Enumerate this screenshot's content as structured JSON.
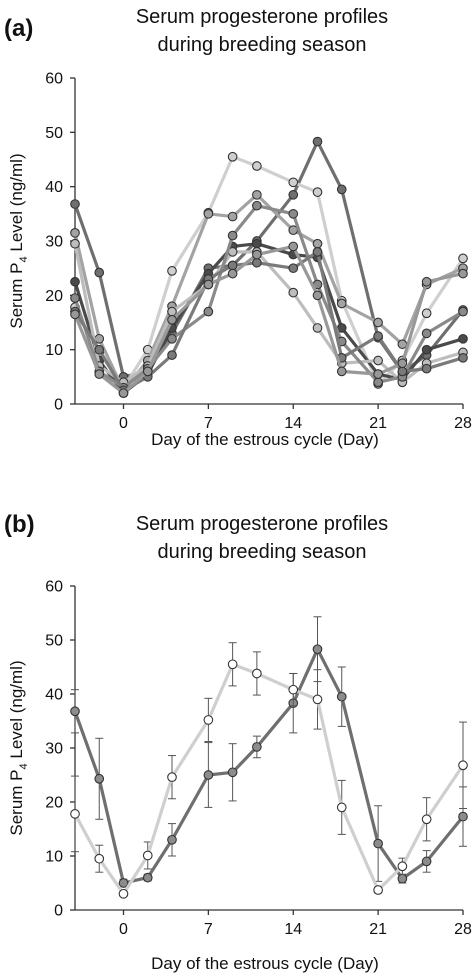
{
  "chart_data": [
    {
      "panel": "(a)",
      "type": "line",
      "title": "Serum progesterone profiles\nduring breeding season",
      "xlabel": "Day of the estrous cycle (Day)",
      "ylabel": "Serum P4 Level (ng/ml)",
      "ylabel_main": "Serum P",
      "ylabel_sub": "4",
      "ylabel_rest": " Level (ng/ml)",
      "xlim": [
        -4,
        28
      ],
      "ylim": [
        0,
        60
      ],
      "xticks": [
        "0",
        "7",
        "14",
        "21",
        "28"
      ],
      "yticks": [
        "0",
        "10",
        "20",
        "30",
        "40",
        "50",
        "60"
      ],
      "grid": false,
      "legend": "none",
      "x": [
        -4,
        -2,
        0,
        2,
        4,
        7,
        9,
        11,
        14,
        16,
        18,
        21,
        23,
        25,
        28
      ],
      "series": [
        {
          "color": "#6f6f6f",
          "values": [
            36.8,
            24.2,
            5.0,
            6.0,
            13.0,
            25.0,
            25.5,
            30.0,
            38.5,
            48.3,
            39.5,
            12.2,
            5.8,
            9.0,
            17.3
          ]
        },
        {
          "color": "#cfcfcf",
          "values": [
            17.8,
            9.5,
            3.0,
            10.0,
            24.5,
            35.2,
            45.5,
            43.8,
            40.8,
            39.0,
            19.0,
            3.7,
            8.0,
            16.7,
            26.8
          ]
        },
        {
          "color": "#a3a3a3",
          "values": [
            31.5,
            12.0,
            2.5,
            8.0,
            18.0,
            35.0,
            34.5,
            38.5,
            32.0,
            29.5,
            18.5,
            15.0,
            11.0,
            22.0,
            25.0
          ]
        },
        {
          "color": "#4a4a4a",
          "values": [
            22.5,
            8.0,
            2.0,
            5.5,
            14.0,
            24.0,
            29.0,
            29.5,
            27.5,
            27.0,
            14.0,
            5.5,
            4.5,
            10.0,
            12.0
          ]
        },
        {
          "color": "#bdbdbd",
          "values": [
            29.5,
            7.0,
            4.0,
            7.0,
            17.0,
            22.0,
            28.0,
            28.0,
            20.5,
            14.0,
            7.5,
            8.0,
            4.0,
            7.5,
            9.5
          ]
        },
        {
          "color": "#8a8a8a",
          "values": [
            19.5,
            6.0,
            3.0,
            6.5,
            12.0,
            17.0,
            31.0,
            36.5,
            35.0,
            22.0,
            11.5,
            4.0,
            5.0,
            13.0,
            17.0
          ]
        },
        {
          "color": "#7a7a7a",
          "values": [
            17.0,
            10.0,
            2.5,
            5.0,
            9.0,
            23.0,
            25.5,
            26.0,
            25.0,
            28.0,
            8.5,
            12.5,
            6.0,
            6.5,
            8.5
          ]
        },
        {
          "color": "#989898",
          "values": [
            16.5,
            5.5,
            2.0,
            6.0,
            15.5,
            22.0,
            24.0,
            27.5,
            29.0,
            20.0,
            6.0,
            5.5,
            7.5,
            22.5,
            24.0
          ]
        }
      ]
    },
    {
      "panel": "(b)",
      "type": "line",
      "title": "Serum progesterone profiles\nduring breeding season",
      "xlabel": "Day of the estrous cycle (Day)",
      "ylabel": "Serum P4 Level (ng/ml)",
      "ylabel_main": "Serum P",
      "ylabel_sub": "4",
      "ylabel_rest": " Level (ng/ml)",
      "xlim": [
        -4,
        28
      ],
      "ylim": [
        0,
        60
      ],
      "xticks": [
        "0",
        "7",
        "14",
        "21",
        "28"
      ],
      "yticks": [
        "0",
        "10",
        "20",
        "30",
        "40",
        "50",
        "60"
      ],
      "grid": false,
      "legend": "none",
      "x": [
        -4,
        -2,
        0,
        2,
        4,
        7,
        9,
        11,
        14,
        16,
        18,
        21,
        23,
        25,
        28
      ],
      "series": [
        {
          "color": "#6f6f6f",
          "marker_fill": "#8c8c8c",
          "values": [
            36.8,
            24.3,
            5.0,
            6.0,
            13.0,
            25.0,
            25.5,
            30.2,
            38.3,
            48.3,
            39.5,
            12.3,
            5.8,
            9.0,
            17.3
          ],
          "errors": [
            4.0,
            7.5,
            0.7,
            0.6,
            3.0,
            6.0,
            5.3,
            2.0,
            5.5,
            6.0,
            5.5,
            7.0,
            0.8,
            2.0,
            5.5
          ]
        },
        {
          "color": "#cfcfcf",
          "marker_fill": "#ffffff",
          "values": [
            17.8,
            9.5,
            3.0,
            10.1,
            24.6,
            35.2,
            45.5,
            43.8,
            40.8,
            39.0,
            19.0,
            3.7,
            8.1,
            16.8,
            26.8
          ],
          "errors": [
            7.0,
            2.5,
            0.5,
            2.5,
            4.0,
            4.0,
            4.0,
            4.0,
            3.0,
            5.5,
            5.0,
            0.5,
            1.5,
            4.0,
            8.0
          ]
        }
      ]
    }
  ]
}
